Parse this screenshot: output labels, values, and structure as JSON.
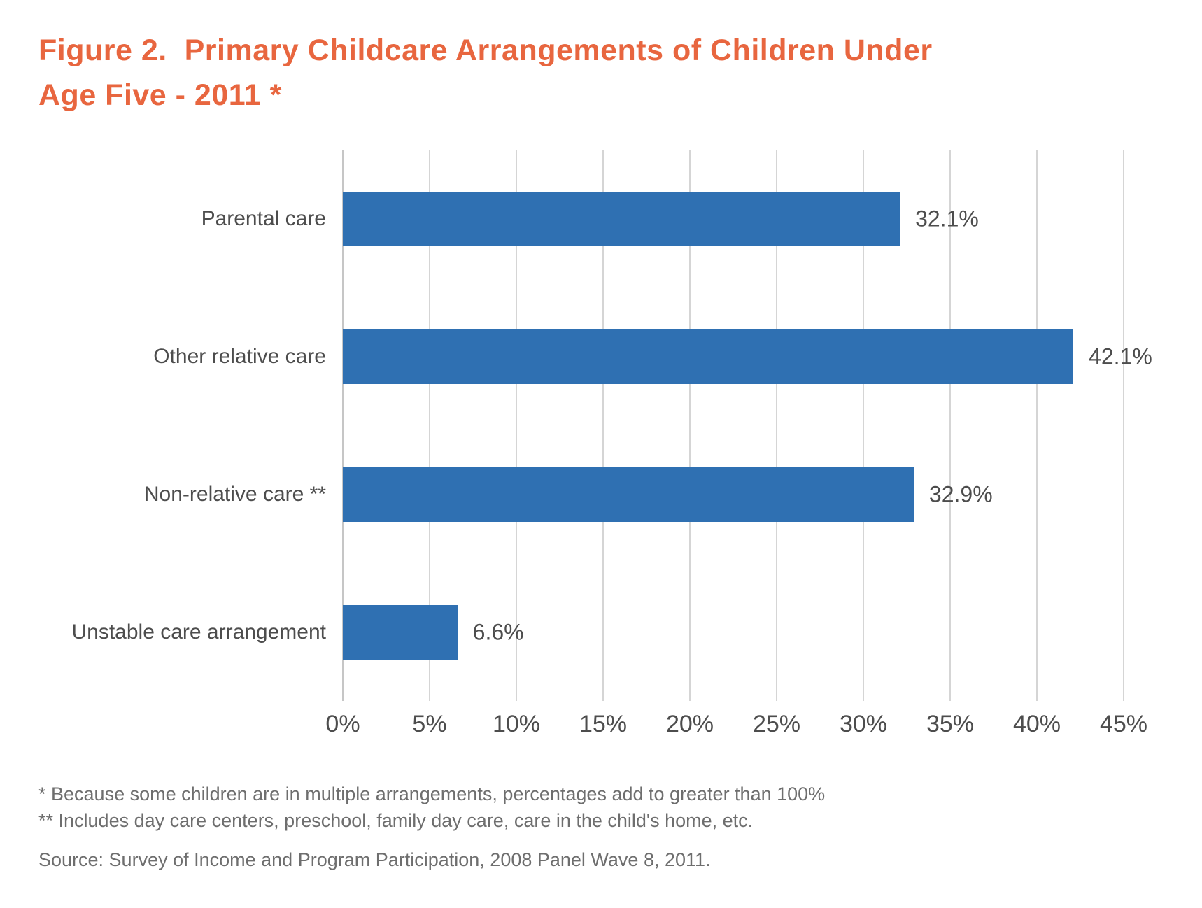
{
  "title": {
    "line1": "Figure 2.  Primary Childcare Arrangements of Children Under",
    "line2": "Age Five - 2011 *"
  },
  "chart_data": {
    "type": "bar",
    "orientation": "horizontal",
    "title": "Figure 2.  Primary Childcare Arrangements of Children Under Age Five - 2011 *",
    "categories": [
      "Parental care",
      "Other relative care",
      "Non-relative care **",
      "Unstable care arrangement"
    ],
    "values": [
      32.1,
      42.1,
      32.9,
      6.6
    ],
    "value_labels": [
      "32.1%",
      "42.1%",
      "32.9%",
      "6.6%"
    ],
    "xlabel": "",
    "ylabel": "",
    "xlim": [
      0,
      45
    ],
    "x_tick_values": [
      0,
      5,
      10,
      15,
      20,
      25,
      30,
      35,
      40,
      45
    ],
    "x_tick_labels": [
      "0%",
      "5%",
      "10%",
      "15%",
      "20%",
      "25%",
      "30%",
      "35%",
      "40%",
      "45%"
    ],
    "grid": true,
    "legend": false,
    "bar_color": "#2F70B2",
    "gridline_color": "#D5D5D5",
    "title_color": "#E8663F",
    "label_color": "#4D4D4D"
  },
  "footnotes": {
    "note1": "* Because some children are in multiple arrangements, percentages add to greater than 100%",
    "note2": "** Includes day care centers, preschool, family day care, care in the child's home, etc.",
    "source": "Source: Survey of Income and Program Participation, 2008 Panel Wave 8, 2011."
  }
}
